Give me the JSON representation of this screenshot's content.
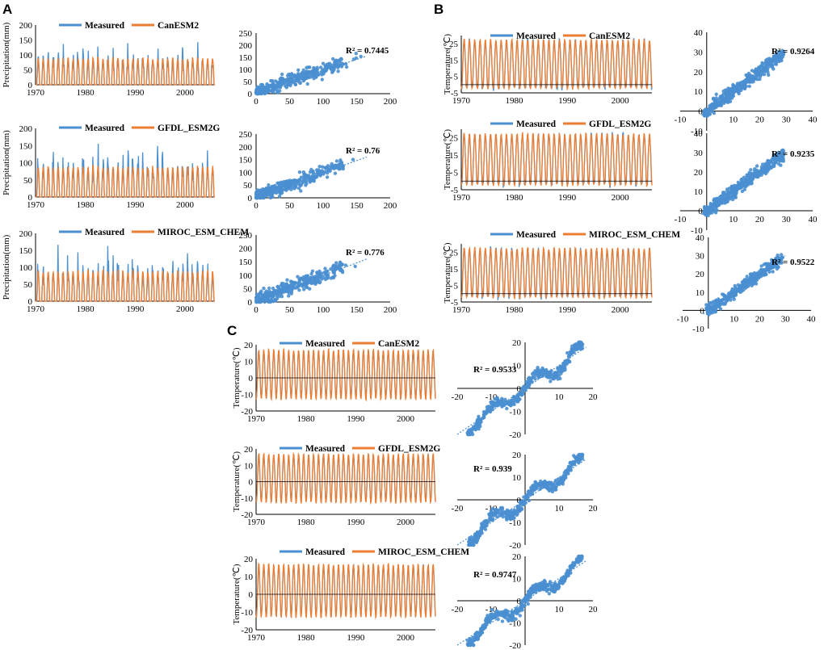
{
  "colors": {
    "measured": "#4a8fd0",
    "model": "#ed7d31",
    "axis": "#000000",
    "trend": "#4a8fd0"
  },
  "panels": [
    {
      "label": "A"
    },
    {
      "label": "B"
    },
    {
      "label": "C"
    }
  ],
  "chart_data": [
    {
      "panel": "A",
      "type": "line",
      "model": "CanESM2",
      "legend": [
        "Measured",
        "CanESM2"
      ],
      "ylabel": "Precipitation(mm)",
      "x": [
        1970,
        2006
      ],
      "ylim": [
        0,
        200
      ],
      "yticks": [
        0,
        50,
        100,
        150,
        200
      ],
      "xticks": [
        1970,
        1980,
        1990,
        2000
      ]
    },
    {
      "panel": "A",
      "type": "scatter",
      "r2_label": "R² = 0.7445",
      "xlim": [
        0,
        200
      ],
      "ylim": [
        0,
        250
      ],
      "xticks": [
        0,
        50,
        100,
        150,
        200
      ],
      "yticks": [
        0,
        50,
        100,
        150,
        200,
        250
      ],
      "trend": [
        [
          0,
          5
        ],
        [
          165,
          155
        ]
      ]
    },
    {
      "panel": "A",
      "type": "line",
      "model": "GFDL_ESM2G",
      "legend": [
        "Measured",
        "GFDL_ESM2G"
      ],
      "ylabel": "Precipitation(mm)",
      "x": [
        1970,
        2006
      ],
      "ylim": [
        0,
        200
      ],
      "yticks": [
        0,
        50,
        100,
        150,
        200
      ],
      "xticks": [
        1970,
        1980,
        1990,
        2000
      ]
    },
    {
      "panel": "A",
      "type": "scatter",
      "r2_label": "R² = 0.76",
      "xlim": [
        0,
        200
      ],
      "ylim": [
        0,
        250
      ],
      "xticks": [
        0,
        50,
        100,
        150,
        200
      ],
      "yticks": [
        0,
        50,
        100,
        150,
        200,
        250
      ],
      "trend": [
        [
          0,
          5
        ],
        [
          165,
          160
        ]
      ]
    },
    {
      "panel": "A",
      "type": "line",
      "model": "MIROC_ESM_CHEM",
      "legend": [
        "Measured",
        "MIROC_ESM_CHEM"
      ],
      "ylabel": "Precipitation(mm)",
      "x": [
        1970,
        2006
      ],
      "ylim": [
        0,
        200
      ],
      "yticks": [
        0,
        50,
        100,
        150,
        200
      ],
      "xticks": [
        1970,
        1980,
        1990,
        2000
      ]
    },
    {
      "panel": "A",
      "type": "scatter",
      "r2_label": "R² = 0.776",
      "xlim": [
        0,
        200
      ],
      "ylim": [
        0,
        250
      ],
      "xticks": [
        0,
        50,
        100,
        150,
        200
      ],
      "yticks": [
        0,
        50,
        100,
        150,
        200,
        250
      ],
      "trend": [
        [
          0,
          5
        ],
        [
          165,
          160
        ]
      ]
    },
    {
      "panel": "B",
      "type": "line",
      "model": "CanESM2",
      "legend": [
        "Measured",
        "CanESM2"
      ],
      "ylabel": "Temperature(℃)",
      "x": [
        1970,
        2006
      ],
      "ylim": [
        -5,
        30
      ],
      "yticks": [
        -5,
        5,
        15,
        25
      ],
      "xticks": [
        1970,
        1980,
        1990,
        2000
      ]
    },
    {
      "panel": "B",
      "type": "scatter",
      "r2_label": "R² = 0.9264",
      "xlim": [
        -10,
        40
      ],
      "ylim": [
        -10,
        40
      ],
      "xticks": [
        -10,
        0,
        10,
        20,
        30,
        40
      ],
      "yticks": [
        -10,
        0,
        10,
        20,
        30,
        40
      ],
      "trend": [
        [
          -2,
          -2
        ],
        [
          30,
          30
        ]
      ]
    },
    {
      "panel": "B",
      "type": "line",
      "model": "GFDL_ESM2G",
      "legend": [
        "Measured",
        "GFDL_ESM2G"
      ],
      "ylabel": "Temperature(℃)",
      "x": [
        1970,
        2006
      ],
      "ylim": [
        -5,
        30
      ],
      "yticks": [
        -5,
        5,
        15,
        25
      ],
      "xticks": [
        1970,
        1980,
        1990,
        2000
      ]
    },
    {
      "panel": "B",
      "type": "scatter",
      "r2_label": "R² = 0.9235",
      "xlim": [
        -10,
        40
      ],
      "ylim": [
        -10,
        40
      ],
      "xticks": [
        -10,
        0,
        10,
        20,
        30,
        40
      ],
      "yticks": [
        -10,
        0,
        10,
        20,
        30,
        40
      ],
      "trend": [
        [
          -2,
          -2
        ],
        [
          30,
          30
        ]
      ]
    },
    {
      "panel": "B",
      "type": "line",
      "model": "MIROC_ESM_CHEM",
      "legend": [
        "Measured",
        "MIROC_ESM_CHEM"
      ],
      "ylabel": "Temperature(℃)",
      "x": [
        1970,
        2006
      ],
      "ylim": [
        -5,
        30
      ],
      "yticks": [
        -5,
        5,
        15,
        25
      ],
      "xticks": [
        1970,
        1980,
        1990,
        2000
      ]
    },
    {
      "panel": "B",
      "type": "scatter",
      "r2_label": "R² = 0.9522",
      "xlim": [
        -10,
        40
      ],
      "ylim": [
        -10,
        40
      ],
      "xticks": [
        -10,
        0,
        10,
        20,
        30,
        40
      ],
      "yticks": [
        -10,
        0,
        10,
        20,
        30,
        40
      ],
      "trend": [
        [
          -2,
          -2
        ],
        [
          30,
          30
        ]
      ]
    },
    {
      "panel": "C",
      "type": "line",
      "model": "CanESM2",
      "legend": [
        "Measured",
        "CanESM2"
      ],
      "ylabel": "Temperature(℃)",
      "x": [
        1970,
        2006
      ],
      "ylim": [
        -20,
        20
      ],
      "yticks": [
        -20,
        -10,
        0,
        10,
        20
      ],
      "xticks": [
        1970,
        1980,
        1990,
        2000
      ]
    },
    {
      "panel": "C",
      "type": "scatter",
      "r2_label": "R² = 0.9533",
      "xlim": [
        -20,
        20
      ],
      "ylim": [
        -20,
        20
      ],
      "xticks": [
        -20,
        -10,
        0,
        10,
        20
      ],
      "yticks": [
        -20,
        -10,
        0,
        10,
        20
      ],
      "trend": [
        [
          -20,
          -20
        ],
        [
          18,
          18
        ]
      ]
    },
    {
      "panel": "C",
      "type": "line",
      "model": "GFDL_ESM2G",
      "legend": [
        "Measured",
        "GFDL_ESM2G"
      ],
      "ylabel": "Temperature(℃)",
      "x": [
        1970,
        2006
      ],
      "ylim": [
        -20,
        20
      ],
      "yticks": [
        -20,
        -10,
        0,
        10,
        20
      ],
      "xticks": [
        1970,
        1980,
        1990,
        2000
      ]
    },
    {
      "panel": "C",
      "type": "scatter",
      "r2_label": "R² = 0.939",
      "xlim": [
        -20,
        20
      ],
      "ylim": [
        -20,
        20
      ],
      "xticks": [
        -20,
        -10,
        0,
        10,
        20
      ],
      "yticks": [
        -20,
        -10,
        0,
        10,
        20
      ],
      "trend": [
        [
          -20,
          -20
        ],
        [
          18,
          18
        ]
      ]
    },
    {
      "panel": "C",
      "type": "line",
      "model": "MIROC_ESM_CHEM",
      "legend": [
        "Measured",
        "MIROC_ESM_CHEM"
      ],
      "ylabel": "Temperature(℃)",
      "x": [
        1970,
        2006
      ],
      "ylim": [
        -20,
        20
      ],
      "yticks": [
        -20,
        -10,
        0,
        10,
        20
      ],
      "xticks": [
        1970,
        1980,
        1990,
        2000
      ]
    },
    {
      "panel": "C",
      "type": "scatter",
      "r2_label": "R² = 0.9747",
      "xlim": [
        -20,
        20
      ],
      "ylim": [
        -20,
        20
      ],
      "xticks": [
        -20,
        -10,
        0,
        10,
        20
      ],
      "yticks": [
        -20,
        -10,
        0,
        10,
        20
      ],
      "trend": [
        [
          -20,
          -20
        ],
        [
          18,
          18
        ]
      ]
    }
  ]
}
